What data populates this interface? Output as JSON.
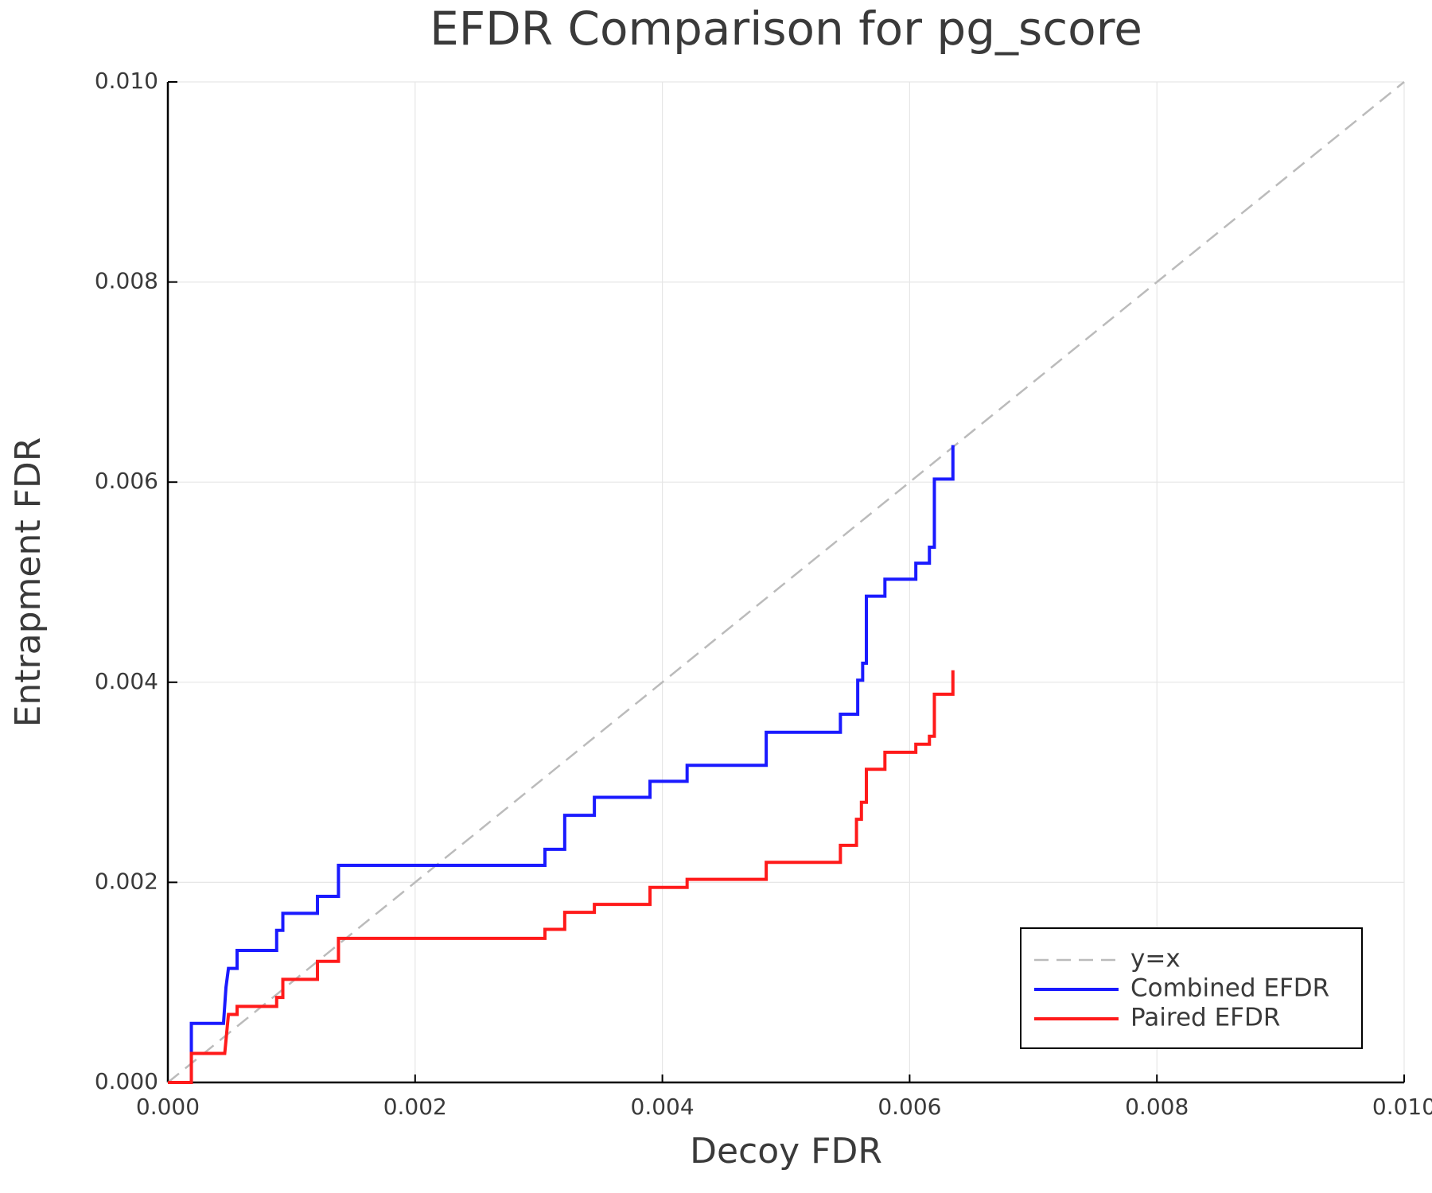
{
  "chart_data": {
    "type": "line",
    "title": "EFDR Comparison for pg_score",
    "xlabel": "Decoy FDR",
    "ylabel": "Entrapment FDR",
    "xlim": [
      0,
      0.01
    ],
    "ylim": [
      0,
      0.01
    ],
    "xticks": [
      {
        "value": 0,
        "label": "0.000"
      },
      0.002,
      0.004,
      0.006,
      0.008,
      {
        "value": 0.01,
        "label": "0.010"
      }
    ],
    "yticks": [
      {
        "value": 0,
        "label": "0.000"
      },
      0.002,
      0.004,
      0.006,
      0.008,
      {
        "value": 0.01,
        "label": "0.010"
      }
    ],
    "grid": true,
    "legend": "bottom right",
    "series": [
      {
        "name": "y=x",
        "color": "#bbbbbb",
        "dashed": true,
        "x": [
          0,
          0.01
        ],
        "values": [
          0,
          0.01
        ]
      },
      {
        "name": "Combined EFDR",
        "color": "#1a1aff",
        "x": [
          0,
          0.00019,
          0.00019,
          0.00045,
          0.00047,
          0.00049,
          0.00056,
          0.00056,
          0.00088,
          0.00088,
          0.00093,
          0.00093,
          0.00121,
          0.00121,
          0.00138,
          0.00138,
          0.00305,
          0.00305,
          0.00321,
          0.00321,
          0.00345,
          0.00345,
          0.0039,
          0.0039,
          0.0042,
          0.0042,
          0.00484,
          0.00484,
          0.00544,
          0.00544,
          0.00558,
          0.00558,
          0.00562,
          0.00562,
          0.00565,
          0.00565,
          0.0058,
          0.0058,
          0.00605,
          0.00605,
          0.00616,
          0.00616,
          0.0062,
          0.0062,
          0.00635,
          0.00635
        ],
        "values": [
          0,
          0,
          0.00059,
          0.00059,
          0.00095,
          0.00114,
          0.00114,
          0.00132,
          0.00132,
          0.00152,
          0.00152,
          0.00169,
          0.00169,
          0.00186,
          0.00186,
          0.00217,
          0.00217,
          0.00233,
          0.00233,
          0.00267,
          0.00267,
          0.00285,
          0.00285,
          0.00301,
          0.00301,
          0.00317,
          0.00317,
          0.0035,
          0.0035,
          0.00368,
          0.00368,
          0.00402,
          0.00402,
          0.00419,
          0.00419,
          0.00486,
          0.00486,
          0.00503,
          0.00503,
          0.00519,
          0.00519,
          0.00535,
          0.00535,
          0.00603,
          0.00603,
          0.00637
        ]
      },
      {
        "name": "Paired EFDR",
        "color": "#ff1a1a",
        "x": [
          0,
          0.00019,
          0.00019,
          0.00046,
          0.00049,
          0.00056,
          0.00056,
          0.00088,
          0.00088,
          0.00093,
          0.00093,
          0.00121,
          0.00121,
          0.00138,
          0.00138,
          0.00305,
          0.00305,
          0.00321,
          0.00321,
          0.00345,
          0.00345,
          0.0039,
          0.0039,
          0.0042,
          0.0042,
          0.00484,
          0.00484,
          0.00544,
          0.00544,
          0.00557,
          0.00557,
          0.00561,
          0.00561,
          0.00565,
          0.00565,
          0.0058,
          0.0058,
          0.00605,
          0.00605,
          0.00616,
          0.00616,
          0.0062,
          0.0062,
          0.00635,
          0.00635
        ],
        "values": [
          0,
          0,
          0.00029,
          0.00029,
          0.00068,
          0.00068,
          0.00076,
          0.00076,
          0.00085,
          0.00085,
          0.00103,
          0.00103,
          0.00121,
          0.00121,
          0.00144,
          0.00144,
          0.00153,
          0.00153,
          0.0017,
          0.0017,
          0.00178,
          0.00178,
          0.00195,
          0.00195,
          0.00203,
          0.00203,
          0.0022,
          0.0022,
          0.00237,
          0.00237,
          0.00263,
          0.00263,
          0.0028,
          0.0028,
          0.00313,
          0.00313,
          0.0033,
          0.0033,
          0.00338,
          0.00338,
          0.00346,
          0.00346,
          0.00388,
          0.00388,
          0.00412
        ]
      }
    ]
  }
}
